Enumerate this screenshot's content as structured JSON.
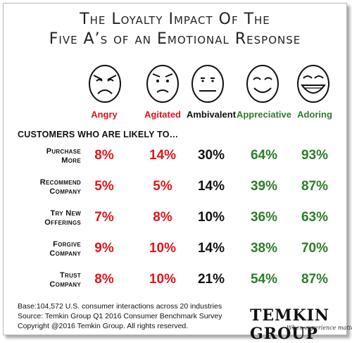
{
  "title": {
    "line1": "The Loyalty Impact Of The",
    "line2": "Five A’s of an Emotional Response"
  },
  "prompt": "CUSTOMERS WHO ARE LIKELY TO…",
  "colors": {
    "negative": "#e3141b",
    "neutral": "#111111",
    "positive": "#2e7d2a"
  },
  "chart_data": {
    "type": "table",
    "categories": [
      "Angry",
      "Agitated",
      "Ambivalent",
      "Appreciative",
      "Adoring"
    ],
    "category_colors": [
      "#e3141b",
      "#e3141b",
      "#111111",
      "#2e7d2a",
      "#2e7d2a"
    ],
    "face_icons": [
      "angry-face-icon",
      "agitated-face-icon",
      "ambivalent-face-icon",
      "appreciative-face-icon",
      "adoring-face-icon"
    ],
    "rows": [
      {
        "line1": "Purchase",
        "line2": "More",
        "values": [
          "8%",
          "14%",
          "30%",
          "64%",
          "93%"
        ]
      },
      {
        "line1": "Recommend",
        "line2": "Company",
        "values": [
          "5%",
          "5%",
          "14%",
          "39%",
          "87%"
        ]
      },
      {
        "line1": "Try New",
        "line2": "Offerings",
        "values": [
          "7%",
          "8%",
          "10%",
          "36%",
          "63%"
        ]
      },
      {
        "line1": "Forgive",
        "line2": "Company",
        "values": [
          "9%",
          "10%",
          "14%",
          "38%",
          "70%"
        ]
      },
      {
        "line1": "Trust",
        "line2": "Company",
        "values": [
          "8%",
          "10%",
          "21%",
          "54%",
          "87%"
        ]
      }
    ]
  },
  "footer": {
    "base": "Base:104,572 U.S. consumer interactions across 20 industries",
    "source": "Source: Temkin Group Q1 2016 Consumer Benchmark Survey",
    "copyright": "Copyright @2016 Temkin Group. All rights reserved."
  },
  "logo": {
    "name": "TEMKIN GROUP",
    "tagline": "When experience matters"
  }
}
